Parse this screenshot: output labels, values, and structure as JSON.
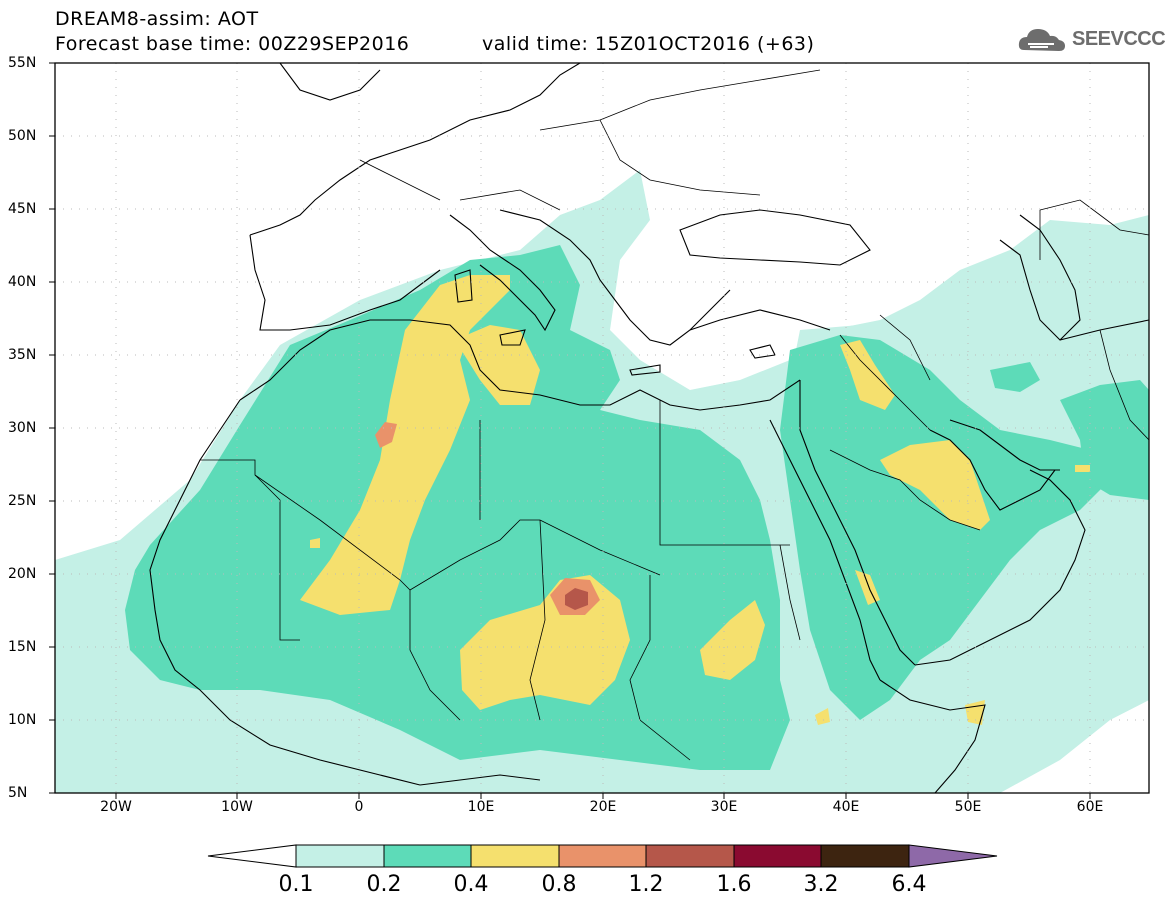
{
  "header": {
    "title_line1": "DREAM8-assim: AOT",
    "title_line2": "Forecast base time: 00Z29SEP2016",
    "valid_time": "valid time: 15Z01OCT2016 (+63)",
    "logo_text": "SEEVCCC"
  },
  "axes": {
    "lat_labels": [
      "55N",
      "50N",
      "45N",
      "40N",
      "35N",
      "30N",
      "25N",
      "20N",
      "15N",
      "10N",
      "5N"
    ],
    "lon_labels": [
      "20W",
      "10W",
      "0",
      "10E",
      "20E",
      "30E",
      "40E",
      "50E",
      "60E"
    ],
    "lat_range": [
      5,
      55
    ],
    "lon_range": [
      -25,
      65
    ]
  },
  "colorbar": {
    "labels": [
      "0.1",
      "0.2",
      "0.4",
      "0.8",
      "1.2",
      "1.6",
      "3.2",
      "6.4"
    ],
    "colors": [
      "#ffffff",
      "#c4f0e6",
      "#5ddbb8",
      "#f5e06e",
      "#e9926a",
      "#b5574a",
      "#8a0a30",
      "#3d2410",
      "#8e69a8"
    ]
  },
  "colors": {
    "level_0p1": "#c4f0e6",
    "level_0p2": "#5ddbb8",
    "level_0p4": "#f5e06e",
    "level_0p8": "#e9926a",
    "level_1p2": "#b5574a",
    "coast": "#000000"
  }
}
